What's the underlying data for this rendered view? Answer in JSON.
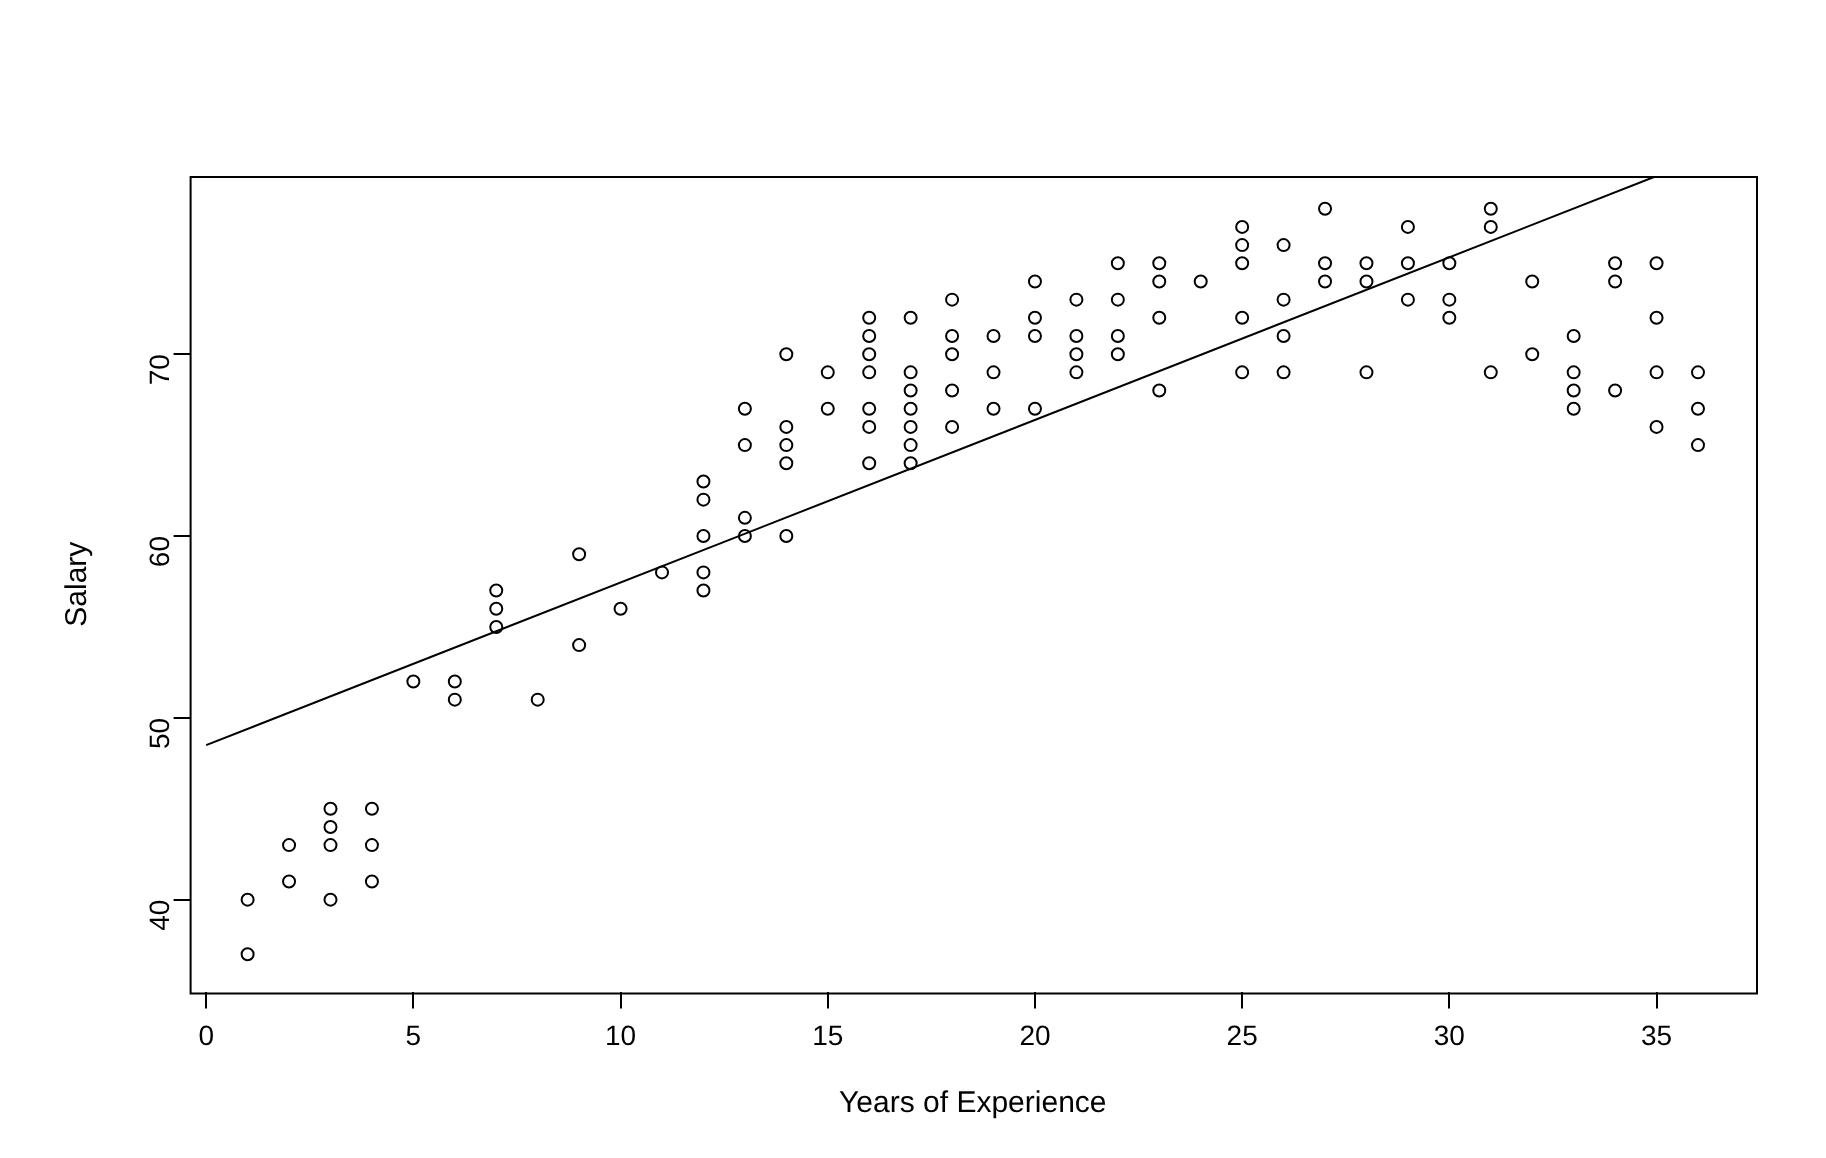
{
  "chart_data": {
    "type": "scatter",
    "xlabel": "Years of Experience",
    "ylabel": "Salary",
    "xlim": [
      -0.4,
      37.4
    ],
    "xticks": [
      0,
      5,
      10,
      15,
      20,
      25,
      30,
      35
    ],
    "ylim": [
      34.9,
      79.8
    ],
    "yticks": [
      40,
      50,
      60,
      70
    ],
    "grid": false,
    "legend": false,
    "series": [
      {
        "marker": "circle",
        "color": "#000000",
        "x": [
          1,
          1,
          2,
          2,
          3,
          3,
          3,
          3,
          4,
          4,
          4,
          5,
          6,
          6,
          7,
          7,
          7,
          8,
          9,
          9,
          10,
          11,
          12,
          12,
          12,
          12,
          12,
          13,
          13,
          13,
          13,
          14,
          14,
          14,
          14,
          14,
          15,
          15,
          16,
          16,
          16,
          16,
          16,
          16,
          16,
          17,
          17,
          17,
          17,
          17,
          17,
          17,
          18,
          18,
          18,
          18,
          18,
          19,
          19,
          19,
          20,
          20,
          20,
          20,
          21,
          21,
          21,
          21,
          22,
          22,
          22,
          22,
          23,
          23,
          23,
          23,
          24,
          25,
          25,
          25,
          25,
          25,
          26,
          26,
          26,
          26,
          27,
          27,
          27,
          28,
          28,
          28,
          29,
          29,
          29,
          30,
          30,
          30,
          31,
          31,
          31,
          32,
          32,
          33,
          33,
          33,
          33,
          34,
          34,
          34,
          35,
          35,
          35,
          35,
          36,
          36,
          36
        ],
        "values": [
          40,
          37,
          43,
          41,
          45,
          44,
          43,
          40,
          45,
          43,
          41,
          52,
          52,
          51,
          57,
          56,
          55,
          51,
          59,
          54,
          56,
          58,
          63,
          62,
          60,
          58,
          57,
          67,
          65,
          61,
          60,
          70,
          66,
          65,
          64,
          60,
          69,
          67,
          72,
          71,
          70,
          69,
          67,
          66,
          64,
          72,
          69,
          68,
          67,
          66,
          65,
          64,
          73,
          71,
          70,
          68,
          66,
          71,
          69,
          67,
          74,
          72,
          71,
          67,
          73,
          71,
          70,
          69,
          75,
          73,
          71,
          70,
          75,
          74,
          72,
          68,
          74,
          77,
          76,
          75,
          72,
          69,
          76,
          73,
          71,
          69,
          78,
          75,
          74,
          75,
          74,
          69,
          77,
          75,
          73,
          75,
          73,
          72,
          78,
          77,
          69,
          74,
          70,
          71,
          69,
          68,
          67,
          75,
          74,
          68,
          75,
          72,
          69,
          66,
          69,
          67,
          65
        ]
      },
      {
        "type": "line",
        "marker": "none",
        "color": "#000000",
        "x": [
          0,
          35
        ],
        "values": [
          48.5,
          79.8
        ]
      }
    ]
  }
}
